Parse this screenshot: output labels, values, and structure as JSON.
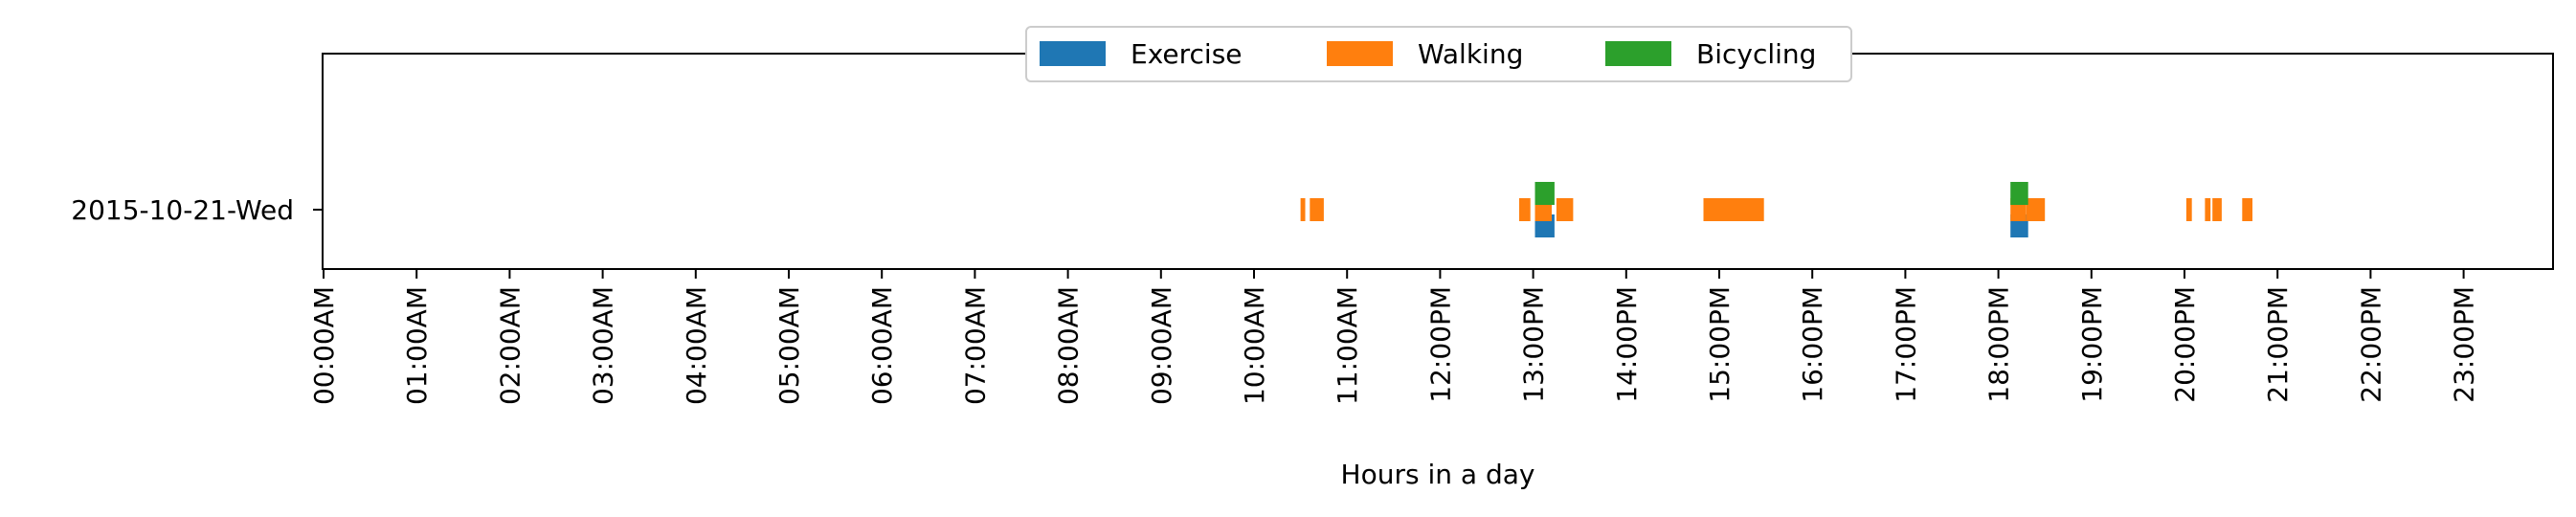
{
  "chart_data": {
    "type": "timeline",
    "title": "",
    "xlabel": "Hours in a day",
    "ylabel": "",
    "xlim": [
      0,
      24
    ],
    "x_ticks": [
      "00:00AM",
      "01:00AM",
      "02:00AM",
      "03:00AM",
      "04:00AM",
      "05:00AM",
      "06:00AM",
      "07:00AM",
      "08:00AM",
      "09:00AM",
      "10:00AM",
      "11:00AM",
      "12:00PM",
      "13:00PM",
      "14:00PM",
      "15:00PM",
      "16:00PM",
      "17:00PM",
      "18:00PM",
      "19:00PM",
      "20:00PM",
      "21:00PM",
      "22:00PM",
      "23:00PM"
    ],
    "y_categories": [
      "2015-10-21-Wed"
    ],
    "grid": false,
    "legend_position": "top-center",
    "series": [
      {
        "name": "Exercise",
        "color": "#1f77b4",
        "lane": "lower",
        "intervals": [
          [
            13.02,
            13.23
          ],
          [
            18.13,
            18.32
          ]
        ]
      },
      {
        "name": "Walking",
        "color": "#ff7f0e",
        "lane": "middle",
        "intervals": [
          [
            10.5,
            10.55
          ],
          [
            10.6,
            10.75
          ],
          [
            12.85,
            12.97
          ],
          [
            13.02,
            13.2
          ],
          [
            13.25,
            13.43
          ],
          [
            14.83,
            15.48
          ],
          [
            18.13,
            18.3
          ],
          [
            18.3,
            18.5
          ],
          [
            20.02,
            20.08
          ],
          [
            20.22,
            20.28
          ],
          [
            20.3,
            20.4
          ],
          [
            20.62,
            20.73
          ]
        ]
      },
      {
        "name": "Bicycling",
        "color": "#2ca02c",
        "lane": "upper",
        "intervals": [
          [
            13.02,
            13.23
          ],
          [
            18.13,
            18.32
          ]
        ]
      }
    ]
  }
}
